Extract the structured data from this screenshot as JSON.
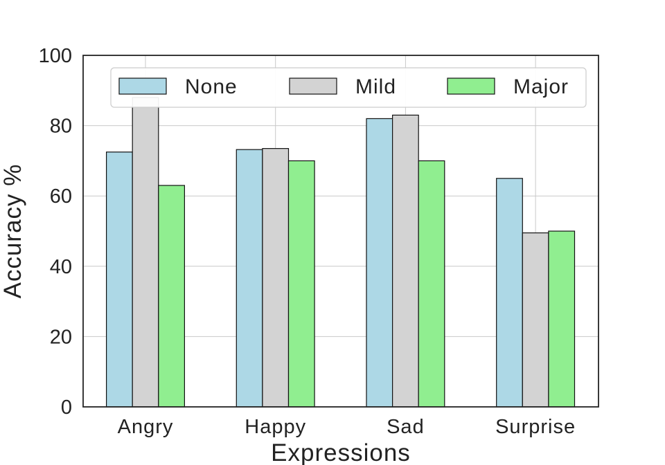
{
  "chart_data": {
    "type": "bar",
    "categories": [
      "Angry",
      "Happy",
      "Sad",
      "Surprise"
    ],
    "series": [
      {
        "name": "None",
        "values": [
          72.5,
          73.2,
          82.0,
          65.0
        ],
        "color": "#add8e6"
      },
      {
        "name": "Mild",
        "values": [
          88.0,
          73.5,
          83.0,
          49.5
        ],
        "color": "#d3d3d3"
      },
      {
        "name": "Major",
        "values": [
          63.0,
          70.0,
          70.0,
          50.0
        ],
        "color": "#90ee90"
      }
    ],
    "title": "",
    "xlabel": "Expressions",
    "ylabel": "Accuracy %",
    "ylim": [
      0,
      100
    ],
    "yticks": [
      "0",
      "20",
      "40",
      "60",
      "80",
      "100"
    ],
    "grid": true,
    "legend_position": "top"
  }
}
